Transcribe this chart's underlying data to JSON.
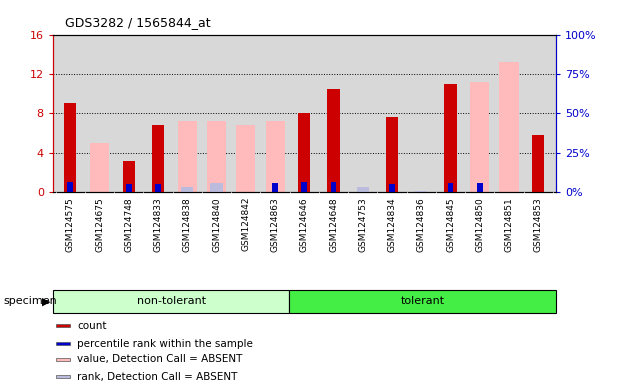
{
  "title": "GDS3282 / 1565844_at",
  "samples": [
    "GSM124575",
    "GSM124675",
    "GSM124748",
    "GSM124833",
    "GSM124838",
    "GSM124840",
    "GSM124842",
    "GSM124863",
    "GSM124646",
    "GSM124648",
    "GSM124753",
    "GSM124834",
    "GSM124836",
    "GSM124845",
    "GSM124850",
    "GSM124851",
    "GSM124853"
  ],
  "non_tolerant_count": 8,
  "tolerant_count": 9,
  "group_colors": {
    "non-tolerant": "#ccffcc",
    "tolerant": "#44ee44"
  },
  "count": [
    9.0,
    0.0,
    3.2,
    6.8,
    0.0,
    0.0,
    0.0,
    0.0,
    8.0,
    10.5,
    0.0,
    7.6,
    0.0,
    11.0,
    0.0,
    0.0,
    5.8
  ],
  "percentile_rank": [
    6.5,
    0.0,
    5.0,
    5.2,
    0.0,
    0.0,
    0.0,
    5.5,
    6.2,
    6.5,
    0.0,
    5.2,
    0.0,
    5.5,
    5.5,
    0.0,
    0.0
  ],
  "value_absent": [
    0.0,
    5.0,
    0.0,
    0.0,
    7.2,
    7.2,
    6.8,
    7.2,
    0.0,
    0.0,
    0.0,
    0.0,
    0.0,
    0.0,
    11.2,
    13.2,
    0.0
  ],
  "rank_absent": [
    0.0,
    0.0,
    3.5,
    0.0,
    3.1,
    5.6,
    0.0,
    0.0,
    0.0,
    0.0,
    3.2,
    0.0,
    0.7,
    0.0,
    0.0,
    0.0,
    0.0
  ],
  "ylim_left": [
    0,
    16
  ],
  "ylim_right": [
    0,
    100
  ],
  "yticks_left": [
    0,
    4,
    8,
    12,
    16
  ],
  "yticks_right": [
    0,
    25,
    50,
    75,
    100
  ],
  "color_count": "#cc0000",
  "color_rank": "#0000cc",
  "color_value_absent": "#ffbbbb",
  "color_rank_absent": "#bbbbdd",
  "bg_plot": "#d8d8d8",
  "legend_items": [
    {
      "label": "count",
      "color": "#cc0000"
    },
    {
      "label": "percentile rank within the sample",
      "color": "#0000cc"
    },
    {
      "label": "value, Detection Call = ABSENT",
      "color": "#ffbbbb"
    },
    {
      "label": "rank, Detection Call = ABSENT",
      "color": "#bbbbdd"
    }
  ]
}
